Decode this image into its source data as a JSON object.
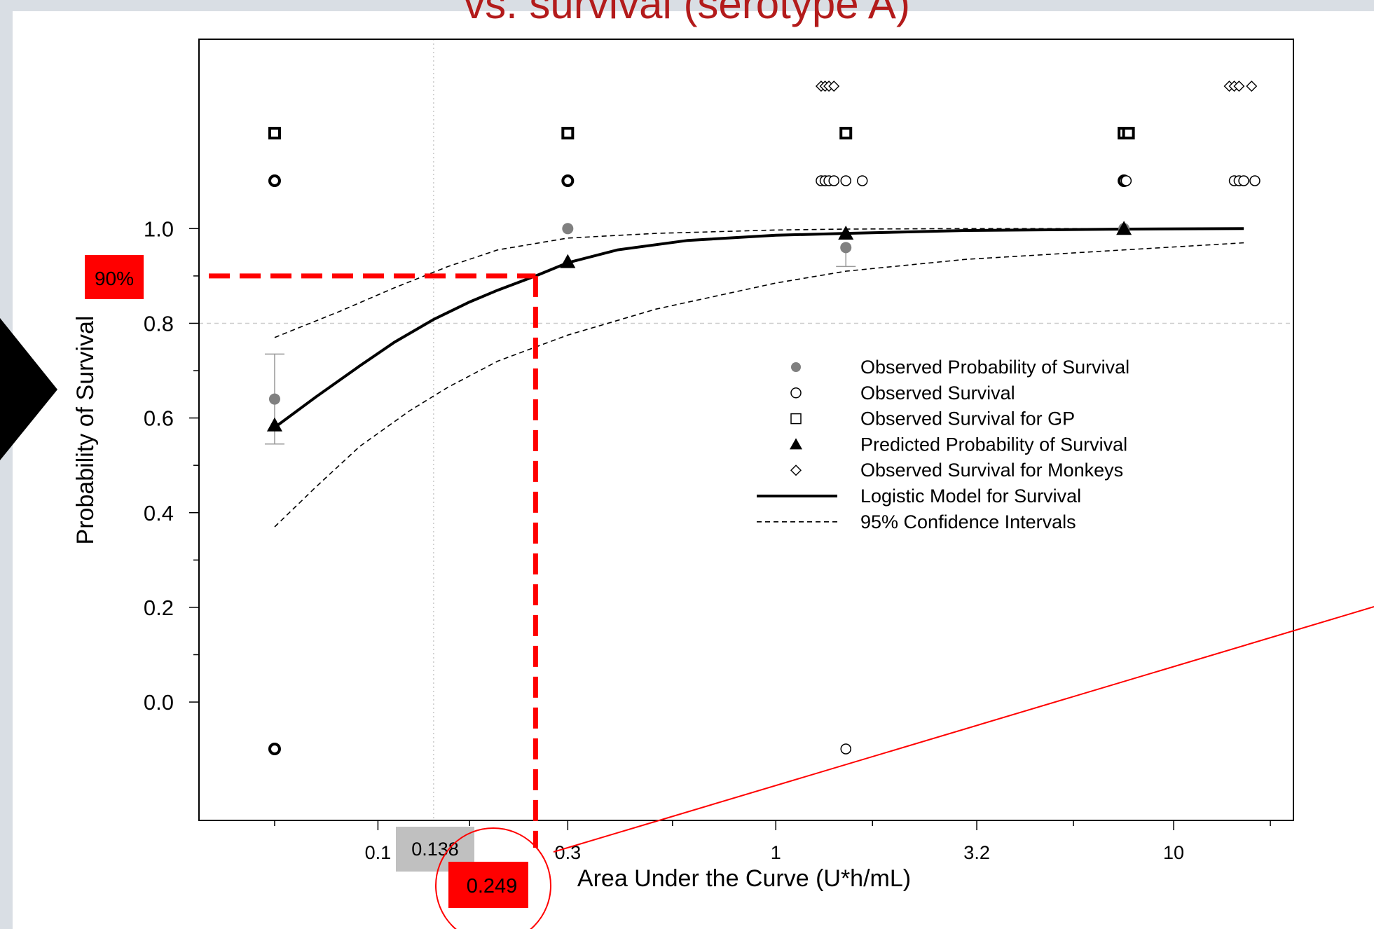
{
  "slide": {
    "title": "vs. survival (serotype A)"
  },
  "colors": {
    "background": "#d9dee4",
    "title": "#b31b1b",
    "highlight_red": "#ff0000",
    "highlight_gray": "#c0c0c0",
    "observed_prob": "#808080",
    "errorbar": "#999999"
  },
  "chart_data": {
    "type": "scatter",
    "xlabel": "Area Under the Curve (U*h/mL)",
    "ylabel": "Probability of Survival",
    "x_scale": "log",
    "x_ticks": [
      {
        "value": 0.1,
        "label": "0.1"
      },
      {
        "value": 0.3,
        "label": "0.3"
      },
      {
        "value": 1,
        "label": "1"
      },
      {
        "value": 3.2,
        "label": "3.2"
      },
      {
        "value": 10,
        "label": "10"
      }
    ],
    "y_ticks": [
      {
        "value": 0.0,
        "label": "0.0"
      },
      {
        "value": 0.2,
        "label": "0.2"
      },
      {
        "value": 0.4,
        "label": "0.4"
      },
      {
        "value": 0.6,
        "label": "0.6"
      },
      {
        "value": 0.8,
        "label": "0.8"
      },
      {
        "value": 1.0,
        "label": "1.0"
      }
    ],
    "xlim": [
      0.0355,
      20
    ],
    "ylim": [
      -0.25,
      1.4
    ],
    "grid_x": [
      0.138
    ],
    "grid_y": [
      0.8
    ],
    "legend_position": "right",
    "legend": [
      {
        "label": "Observed Probability of Survival",
        "marker": "filled-circle"
      },
      {
        "label": "Observed Survival",
        "marker": "open-circle"
      },
      {
        "label": "Observed Survival for GP",
        "marker": "open-square"
      },
      {
        "label": "Predicted Probability of Survival",
        "marker": "filled-triangle"
      },
      {
        "label": "Observed Survival for Monkeys",
        "marker": "open-diamond"
      },
      {
        "label": "Logistic Model for Survival",
        "marker": "solid-line"
      },
      {
        "label": "95% Confidence Intervals",
        "marker": "dashed-line"
      }
    ],
    "observed_probability": {
      "x": [
        0.055,
        0.3,
        1.5,
        7.5
      ],
      "y": [
        0.64,
        1.0,
        0.96,
        1.0
      ],
      "err_low": [
        0.545,
        null,
        0.92,
        null
      ],
      "err_high": [
        0.735,
        null,
        null,
        null
      ]
    },
    "predicted_probability": {
      "x": [
        0.055,
        0.3,
        1.5,
        7.5
      ],
      "y": [
        0.585,
        0.93,
        0.99,
        1.0
      ]
    },
    "logistic_model": {
      "x": [
        0.055,
        0.07,
        0.09,
        0.11,
        0.138,
        0.17,
        0.2,
        0.249,
        0.3,
        0.4,
        0.6,
        1.0,
        1.5,
        3.0,
        7.5,
        15
      ],
      "y": [
        0.58,
        0.645,
        0.71,
        0.76,
        0.808,
        0.845,
        0.87,
        0.9,
        0.928,
        0.955,
        0.975,
        0.986,
        0.99,
        0.996,
        0.999,
        1.0
      ]
    },
    "ci_upper": {
      "x": [
        0.055,
        0.08,
        0.11,
        0.15,
        0.2,
        0.3,
        0.5,
        1.0,
        1.5,
        3.0,
        7.5,
        15
      ],
      "y": [
        0.77,
        0.825,
        0.875,
        0.92,
        0.955,
        0.98,
        0.99,
        0.997,
        0.999,
        1.0,
        1.0,
        1.0
      ]
    },
    "ci_lower": {
      "x": [
        0.055,
        0.07,
        0.09,
        0.12,
        0.15,
        0.2,
        0.3,
        0.5,
        1.0,
        1.5,
        3.0,
        7.5,
        15
      ],
      "y": [
        0.37,
        0.455,
        0.54,
        0.615,
        0.665,
        0.72,
        0.775,
        0.83,
        0.885,
        0.91,
        0.935,
        0.955,
        0.97
      ]
    },
    "observed_survival": {
      "x": [
        0.055,
        0.055,
        0.3,
        1.3,
        1.33,
        1.36,
        1.4,
        1.5,
        1.65,
        7.5,
        7.6,
        14.2,
        14.6,
        15.0,
        16.0,
        1.5
      ],
      "y": [
        1,
        0,
        1,
        1,
        1,
        1,
        1,
        1,
        1,
        1,
        1,
        1,
        1,
        1,
        1,
        0
      ]
    },
    "observed_survival_gp": {
      "x": [
        0.055,
        0.3,
        1.5,
        7.5,
        7.7
      ],
      "y": [
        1,
        1,
        1,
        1,
        1
      ]
    },
    "observed_survival_monkeys": {
      "x": [
        1.3,
        1.33,
        1.36,
        1.4,
        13.8,
        14.2,
        14.6,
        15.7
      ],
      "y": [
        1,
        1,
        1,
        1,
        1,
        1,
        1,
        1
      ]
    },
    "annotations": [
      {
        "name": "target-probability",
        "text": "90%",
        "y": 0.9
      },
      {
        "name": "grid-x-value",
        "text": "0.138",
        "x": 0.138
      },
      {
        "name": "auc-at-target",
        "text": "0.249",
        "x": 0.249
      }
    ]
  }
}
